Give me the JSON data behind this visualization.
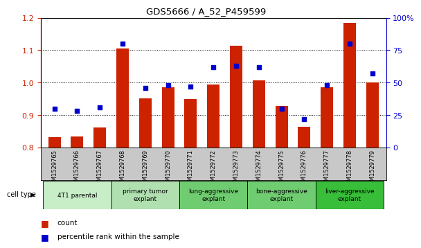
{
  "title": "GDS5666 / A_52_P459599",
  "samples": [
    "GSM1529765",
    "GSM1529766",
    "GSM1529767",
    "GSM1529768",
    "GSM1529769",
    "GSM1529770",
    "GSM1529771",
    "GSM1529772",
    "GSM1529773",
    "GSM1529774",
    "GSM1529775",
    "GSM1529776",
    "GSM1529777",
    "GSM1529778",
    "GSM1529779"
  ],
  "bar_values": [
    0.831,
    0.834,
    0.862,
    1.105,
    0.951,
    0.985,
    0.948,
    0.993,
    1.113,
    1.006,
    0.927,
    0.864,
    0.986,
    1.185,
    1.0
  ],
  "dot_values": [
    30,
    28,
    31,
    80,
    46,
    48,
    47,
    62,
    63,
    62,
    30,
    22,
    48,
    80,
    57
  ],
  "bar_color": "#cc2200",
  "dot_color": "#0000cc",
  "ylim_left": [
    0.8,
    1.2
  ],
  "ylim_right": [
    0,
    100
  ],
  "yticks_left": [
    0.8,
    0.9,
    1.0,
    1.1,
    1.2
  ],
  "yticks_right": [
    0,
    25,
    50,
    75,
    100
  ],
  "ytick_labels_right": [
    "0",
    "25",
    "50",
    "75",
    "100%"
  ],
  "group_info": [
    {
      "label": "4T1 parental",
      "start": 0,
      "end": 2,
      "color": "#c8eec8"
    },
    {
      "label": "primary tumor\nexplant",
      "start": 3,
      "end": 5,
      "color": "#b0e0b0"
    },
    {
      "label": "lung-aggressive\nexplant",
      "start": 6,
      "end": 8,
      "color": "#70cc70"
    },
    {
      "label": "bone-aggressive\nexplant",
      "start": 9,
      "end": 11,
      "color": "#70cc70"
    },
    {
      "label": "liver-aggressive\nexplant",
      "start": 12,
      "end": 14,
      "color": "#38be38"
    }
  ],
  "legend_count": "count",
  "legend_pct": "percentile rank within the sample",
  "bar_width": 0.55
}
